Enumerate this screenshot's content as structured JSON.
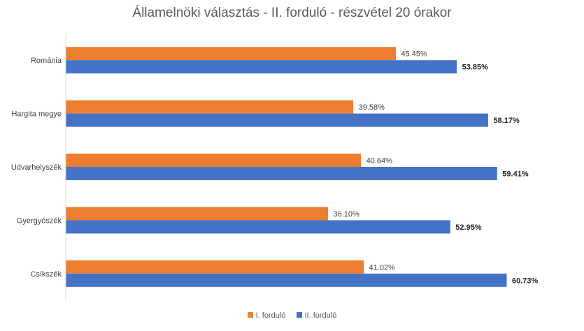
{
  "chart_data": {
    "type": "bar",
    "orientation": "horizontal",
    "title": "Államelnöki választás - II. forduló - részvétel 20 órakor",
    "categories": [
      "Románia",
      "Hargita megye",
      "Udvarhelyszék",
      "Gyergyószék",
      "Csíkszék"
    ],
    "series": [
      {
        "name": "I. forduló",
        "color": "#ED7D31",
        "values": [
          45.45,
          39.58,
          40.64,
          36.1,
          41.02
        ],
        "labels": [
          "45.45%",
          "39.58%",
          "40.64%",
          "36.10%",
          "41.02%"
        ]
      },
      {
        "name": "II. forduló",
        "color": "#4472C4",
        "values": [
          53.85,
          58.17,
          59.41,
          52.95,
          60.73
        ],
        "labels": [
          "53.85%",
          "58.17%",
          "59.41%",
          "52.95%",
          "60.73%"
        ]
      }
    ],
    "xlim": [
      0,
      100
    ],
    "xaxis_ticks_shown": false,
    "grid": false,
    "legend_position": "bottom"
  }
}
